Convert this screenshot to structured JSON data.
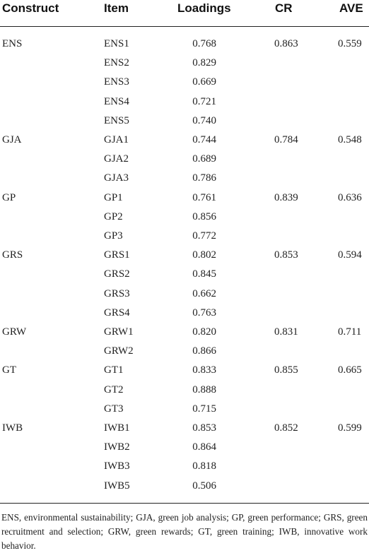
{
  "headers": {
    "construct": "Construct",
    "item": "Item",
    "loadings": "Loadings",
    "cr": "CR",
    "ave": "AVE"
  },
  "rows": [
    {
      "construct": "ENS",
      "item": "ENS1",
      "loading": "0.768",
      "cr": "0.863",
      "ave": "0.559"
    },
    {
      "construct": "",
      "item": "ENS2",
      "loading": "0.829",
      "cr": "",
      "ave": ""
    },
    {
      "construct": "",
      "item": "ENS3",
      "loading": "0.669",
      "cr": "",
      "ave": ""
    },
    {
      "construct": "",
      "item": "ENS4",
      "loading": "0.721",
      "cr": "",
      "ave": ""
    },
    {
      "construct": "",
      "item": "ENS5",
      "loading": "0.740",
      "cr": "",
      "ave": ""
    },
    {
      "construct": "GJA",
      "item": "GJA1",
      "loading": "0.744",
      "cr": "0.784",
      "ave": "0.548"
    },
    {
      "construct": "",
      "item": "GJA2",
      "loading": "0.689",
      "cr": "",
      "ave": ""
    },
    {
      "construct": "",
      "item": "GJA3",
      "loading": "0.786",
      "cr": "",
      "ave": ""
    },
    {
      "construct": "GP",
      "item": "GP1",
      "loading": "0.761",
      "cr": "0.839",
      "ave": "0.636"
    },
    {
      "construct": "",
      "item": "GP2",
      "loading": "0.856",
      "cr": "",
      "ave": ""
    },
    {
      "construct": "",
      "item": "GP3",
      "loading": "0.772",
      "cr": "",
      "ave": ""
    },
    {
      "construct": "GRS",
      "item": "GRS1",
      "loading": "0.802",
      "cr": "0.853",
      "ave": "0.594"
    },
    {
      "construct": "",
      "item": "GRS2",
      "loading": "0.845",
      "cr": "",
      "ave": ""
    },
    {
      "construct": "",
      "item": "GRS3",
      "loading": "0.662",
      "cr": "",
      "ave": ""
    },
    {
      "construct": "",
      "item": "GRS4",
      "loading": "0.763",
      "cr": "",
      "ave": ""
    },
    {
      "construct": "GRW",
      "item": "GRW1",
      "loading": "0.820",
      "cr": "0.831",
      "ave": "0.711"
    },
    {
      "construct": "",
      "item": "GRW2",
      "loading": "0.866",
      "cr": "",
      "ave": ""
    },
    {
      "construct": "GT",
      "item": "GT1",
      "loading": "0.833",
      "cr": "0.855",
      "ave": "0.665"
    },
    {
      "construct": "",
      "item": "GT2",
      "loading": "0.888",
      "cr": "",
      "ave": ""
    },
    {
      "construct": "",
      "item": "GT3",
      "loading": "0.715",
      "cr": "",
      "ave": ""
    },
    {
      "construct": "IWB",
      "item": "IWB1",
      "loading": "0.853",
      "cr": "0.852",
      "ave": "0.599"
    },
    {
      "construct": "",
      "item": "IWB2",
      "loading": "0.864",
      "cr": "",
      "ave": ""
    },
    {
      "construct": "",
      "item": "IWB3",
      "loading": "0.818",
      "cr": "",
      "ave": ""
    },
    {
      "construct": "",
      "item": "IWB5",
      "loading": "0.506",
      "cr": "",
      "ave": ""
    }
  ],
  "footnote": "ENS, environmental sustainability; GJA, green job analysis; GP, green performance; GRS, green recruitment and selection; GRW, green rewards; GT, green training; IWB, innovative work behavior."
}
